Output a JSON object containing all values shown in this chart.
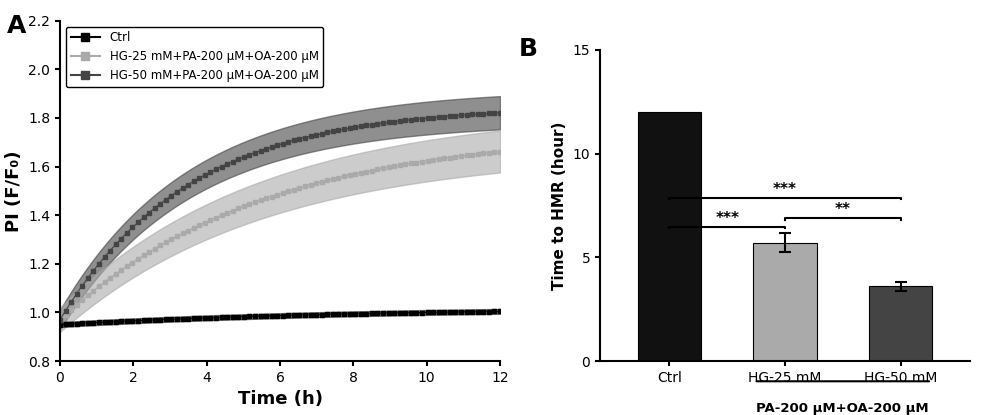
{
  "panel_A": {
    "xlabel": "Time (h)",
    "ylabel": "PI (F/F₀)",
    "xlim": [
      0,
      12
    ],
    "ylim": [
      0.8,
      2.2
    ],
    "xticks": [
      0,
      2,
      4,
      6,
      8,
      10,
      12
    ],
    "yticks": [
      0.8,
      1.0,
      1.2,
      1.4,
      1.6,
      1.8,
      2.0,
      2.2
    ],
    "legend": [
      "Ctrl",
      "HG-25 mM+PA-200 μM+OA-200 μM",
      "HG-50 mM+PA-200 μM+OA-200 μM"
    ],
    "ctrl_color": "#000000",
    "hg25_color": "#aaaaaa",
    "hg50_color": "#444444",
    "label_A": "A"
  },
  "panel_B": {
    "categories": [
      "Ctrl",
      "HG-25 mM",
      "HG-50 mM"
    ],
    "values": [
      12.0,
      5.7,
      3.6
    ],
    "errors": [
      0.0,
      0.45,
      0.2
    ],
    "colors": [
      "#111111",
      "#aaaaaa",
      "#444444"
    ],
    "ylabel": "Time to HMR (hour)",
    "ylim": [
      0,
      15
    ],
    "yticks": [
      0,
      5,
      10,
      15
    ],
    "xlabel_bottom": "PA-200 μM+OA-200 μM",
    "sig1_label": "***",
    "sig2_label": "***",
    "sig3_label": "**",
    "label_B": "B"
  }
}
